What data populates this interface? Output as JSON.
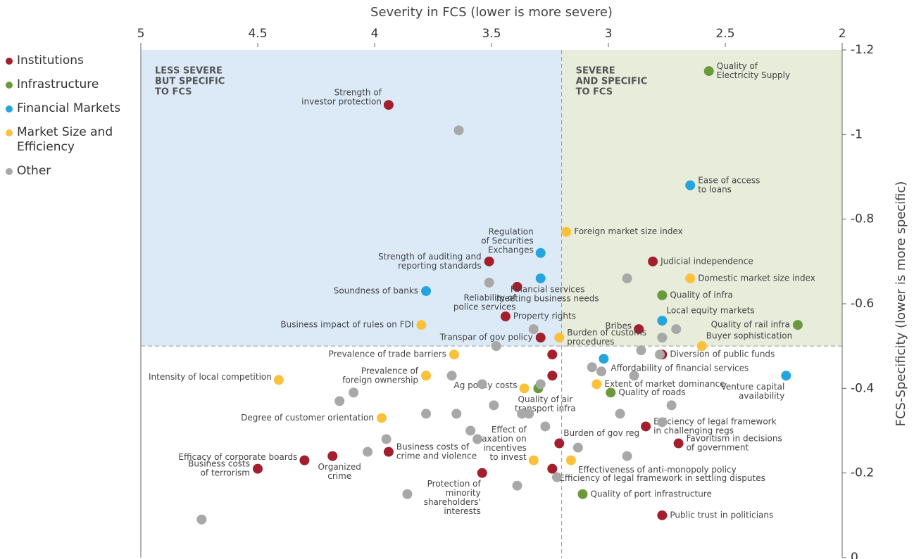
{
  "chart_data": {
    "type": "scatter",
    "xlabel": "Severity in FCS (lower is more severe)",
    "ylabel": "FCS-Specificity (lower is more specific)",
    "xlim": [
      5,
      2
    ],
    "xticks": [
      5,
      4.5,
      4,
      3.5,
      3,
      2.5,
      2
    ],
    "ylim": [
      0,
      -1.2
    ],
    "yticks": [
      -1.2,
      -1,
      -0.8,
      -0.6,
      -0.4,
      -0.2,
      0
    ],
    "quadrant_split": {
      "x": 3.2,
      "y": -0.5
    },
    "annotations": [
      [
        "LESS SEVERE",
        "BUT SPECIFIC",
        "TO FCS"
      ],
      [
        "SEVERE",
        "AND SPECIFIC",
        "TO FCS"
      ]
    ],
    "series": [
      {
        "name": "Institutions",
        "color": "#a31f2e",
        "x": [
          3.94,
          3.51,
          3.39,
          3.44,
          3.29,
          2.81,
          2.87,
          2.77,
          3.24,
          3.24,
          2.84,
          2.7,
          3.21,
          3.24,
          2.77,
          4.3,
          4.18,
          3.94,
          4.5,
          3.54
        ],
        "values": [
          -1.07,
          -0.7,
          -0.64,
          -0.57,
          -0.52,
          -0.7,
          -0.54,
          -0.48,
          -0.48,
          -0.43,
          -0.31,
          -0.27,
          -0.27,
          -0.21,
          -0.1,
          -0.23,
          -0.24,
          -0.25,
          -0.21,
          -0.2
        ],
        "labels": [
          [
            "Strength of",
            "investor protection"
          ],
          [
            "Strength of auditing and",
            "reporting standards"
          ],
          [
            "Reliability of",
            "police services"
          ],
          [
            "Property rights"
          ],
          [
            "Transpar of gov policy"
          ],
          [
            "Judicial independence"
          ],
          [
            "Bribes"
          ],
          [
            "Diversion of public funds"
          ],
          null,
          null,
          [
            "Efficiency of legal framework",
            "in challenging regs"
          ],
          [
            "Favoritism in decisions",
            "of government"
          ],
          [
            "Burden of gov reg"
          ],
          [
            "Efficiency of legal framework in settling disputes"
          ],
          [
            "Public trust in politicians"
          ],
          [
            "Efficacy of corporate boards"
          ],
          [
            "Organized",
            "crime"
          ],
          [
            "Business costs of",
            "crime and violence"
          ],
          [
            "Business costs",
            "of terrorism"
          ],
          [
            "Protection of",
            "minority",
            "shareholders'",
            "interests"
          ]
        ]
      },
      {
        "name": "Infrastructure",
        "color": "#6b9a3d",
        "x": [
          2.57,
          2.77,
          2.19,
          3.3,
          2.99,
          3.11
        ],
        "values": [
          -1.15,
          -0.62,
          -0.55,
          -0.4,
          -0.39,
          -0.15
        ],
        "labels": [
          [
            "Quality of",
            "Electricity Supply"
          ],
          [
            "Quality of infra"
          ],
          [
            "Quality of rail infra"
          ],
          [
            "Quality of air",
            "transport infra"
          ],
          [
            "Quality of roads"
          ],
          [
            "Quality of port infrastructure"
          ]
        ]
      },
      {
        "name": "Financial Markets",
        "color": "#25a5de",
        "x": [
          2.65,
          3.29,
          3.29,
          3.78,
          2.77,
          3.02,
          2.24
        ],
        "values": [
          -0.88,
          -0.72,
          -0.66,
          -0.63,
          -0.56,
          -0.47,
          -0.43
        ],
        "labels": [
          [
            "Ease of access",
            "to loans"
          ],
          [
            "Regulation",
            "of Securities",
            "Exchanges"
          ],
          [
            "Financial services",
            "meeting business needs"
          ],
          [
            "Soundness of banks"
          ],
          [
            "Local equity markets"
          ],
          [
            "Affordability of financial services"
          ],
          [
            "Venture capital",
            "availability"
          ]
        ]
      },
      {
        "name": "Market Size and Efficiency",
        "color": "#fbc13a",
        "x": [
          3.18,
          2.65,
          3.8,
          3.21,
          2.6,
          3.66,
          3.78,
          4.41,
          3.36,
          3.05,
          3.97,
          3.32,
          3.16
        ],
        "values": [
          -0.77,
          -0.66,
          -0.55,
          -0.52,
          -0.5,
          -0.48,
          -0.43,
          -0.42,
          -0.4,
          -0.41,
          -0.33,
          -0.23,
          -0.23
        ],
        "labels": [
          [
            "Foreign market size index"
          ],
          [
            "Domestic market size index"
          ],
          [
            "Business impact of rules on FDI"
          ],
          [
            "Burden of customs",
            "procedures"
          ],
          [
            "Buyer sophistication"
          ],
          [
            "Prevalence of trade barriers"
          ],
          [
            "Prevalence of",
            "foreign ownership"
          ],
          [
            "Intensity of local competition"
          ],
          [
            "Ag policy costs"
          ],
          [
            "Extent of market dominance"
          ],
          [
            "Degree of customer orientation"
          ],
          [
            "Effect of",
            "taxation on",
            "incentives",
            "to invest"
          ],
          [
            "Effectiveness of anti-monopoly policy"
          ]
        ]
      },
      {
        "name": "Other",
        "color": "#a8a8a8",
        "x": [
          3.64,
          3.51,
          2.92,
          3.32,
          2.77,
          2.71,
          3.48,
          2.86,
          2.78,
          3.07,
          3.03,
          2.89,
          3.29,
          3.67,
          3.54,
          4.09,
          4.15,
          2.73,
          3.49,
          3.78,
          3.65,
          3.37,
          3.34,
          2.95,
          2.77,
          3.27,
          3.59,
          3.95,
          3.56,
          3.13,
          4.03,
          2.92,
          3.22,
          3.39,
          3.86,
          4.74
        ],
        "values": [
          -1.01,
          -0.65,
          -0.66,
          -0.54,
          -0.52,
          -0.54,
          -0.5,
          -0.49,
          -0.48,
          -0.45,
          -0.44,
          -0.43,
          -0.41,
          -0.43,
          -0.41,
          -0.39,
          -0.37,
          -0.36,
          -0.36,
          -0.34,
          -0.34,
          -0.34,
          -0.34,
          -0.34,
          -0.32,
          -0.31,
          -0.3,
          -0.28,
          -0.28,
          -0.26,
          -0.25,
          -0.24,
          -0.19,
          -0.17,
          -0.15,
          -0.09
        ]
      }
    ]
  }
}
